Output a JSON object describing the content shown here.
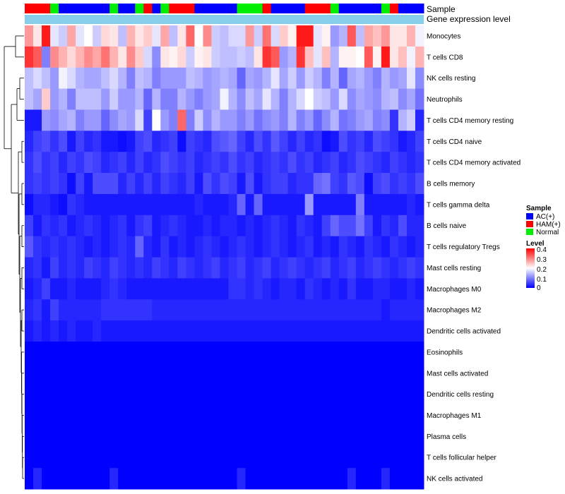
{
  "chart_data": {
    "type": "heatmap",
    "annotation_tracks": [
      "Sample",
      "Gene expression level"
    ],
    "sample_legend": {
      "title": "Sample",
      "entries": [
        {
          "label": "AC(+)",
          "color": "#0000ff"
        },
        {
          "label": "HAM(+)",
          "color": "#ff0000"
        },
        {
          "label": "Normal",
          "color": "#00ee00"
        }
      ]
    },
    "level_legend": {
      "title": "Level",
      "ticks": [
        "0.4",
        "0.3",
        "0.2",
        "0.1",
        "0"
      ],
      "min": 0,
      "max": 0.4,
      "colors": [
        "#0000ff",
        "#ffffff",
        "#ff0000"
      ]
    },
    "expression_bar_color": "#87ceeb",
    "sample_codes": [
      "H",
      "H",
      "H",
      "N",
      "A",
      "A",
      "A",
      "A",
      "A",
      "A",
      "N",
      "A",
      "A",
      "N",
      "H",
      "A",
      "N",
      "H",
      "H",
      "H",
      "A",
      "A",
      "A",
      "A",
      "A",
      "N",
      "N",
      "N",
      "H",
      "A",
      "A",
      "A",
      "A",
      "H",
      "H",
      "H",
      "N",
      "A",
      "A",
      "A",
      "A",
      "A",
      "N",
      "H",
      "A",
      "A",
      "A"
    ],
    "rows": [
      {
        "label": "Monocytes",
        "values": [
          0.28,
          0.22,
          0.38,
          0.18,
          0.16,
          0.27,
          0.18,
          0.2,
          0.16,
          0.23,
          0.22,
          0.15,
          0.26,
          0.22,
          0.24,
          0.18,
          0.27,
          0.15,
          0.22,
          0.32,
          0.2,
          0.29,
          0.16,
          0.15,
          0.17,
          0.17,
          0.28,
          0.16,
          0.31,
          0.17,
          0.24,
          0.21,
          0.38,
          0.38,
          0.18,
          0.21,
          0.12,
          0.14,
          0.33,
          0.15,
          0.27,
          0.25,
          0.28,
          0.22,
          0.22,
          0.26,
          0.19
        ]
      },
      {
        "label": "T cells CD8",
        "values": [
          0.36,
          0.33,
          0.1,
          0.29,
          0.26,
          0.23,
          0.26,
          0.29,
          0.27,
          0.31,
          0.26,
          0.22,
          0.29,
          0.24,
          0.17,
          0.11,
          0.22,
          0.21,
          0.23,
          0.16,
          0.21,
          0.22,
          0.16,
          0.15,
          0.15,
          0.16,
          0.15,
          0.22,
          0.36,
          0.33,
          0.12,
          0.14,
          0.36,
          0.25,
          0.18,
          0.25,
          0.14,
          0.21,
          0.21,
          0.2,
          0.33,
          0.21,
          0.38,
          0.22,
          0.25,
          0.19,
          0.26
        ]
      },
      {
        "label": "NK cells resting",
        "values": [
          0.15,
          0.17,
          0.15,
          0.12,
          0.19,
          0.17,
          0.14,
          0.13,
          0.13,
          0.15,
          0.17,
          0.14,
          0.1,
          0.15,
          0.14,
          0.1,
          0.12,
          0.12,
          0.12,
          0.15,
          0.14,
          0.12,
          0.13,
          0.14,
          0.13,
          0.08,
          0.13,
          0.12,
          0.14,
          0.18,
          0.13,
          0.16,
          0.12,
          0.16,
          0.14,
          0.1,
          0.14,
          0.08,
          0.13,
          0.14,
          0.12,
          0.1,
          0.14,
          0.12,
          0.13,
          0.18,
          0.11
        ]
      },
      {
        "label": "Neutrophils",
        "values": [
          0.15,
          0.13,
          0.24,
          0.12,
          0.14,
          0.1,
          0.15,
          0.15,
          0.15,
          0.12,
          0.16,
          0.12,
          0.12,
          0.14,
          0.08,
          0.14,
          0.1,
          0.1,
          0.14,
          0.12,
          0.1,
          0.12,
          0.13,
          0.19,
          0.14,
          0.11,
          0.15,
          0.13,
          0.18,
          0.14,
          0.1,
          0.14,
          0.17,
          0.2,
          0.16,
          0.15,
          0.12,
          0.17,
          0.11,
          0.13,
          0.12,
          0.11,
          0.14,
          0.15,
          0.11,
          0.13,
          0.09
        ]
      },
      {
        "label": "T cells CD4 memory resting",
        "values": [
          0.02,
          0.02,
          0.12,
          0.11,
          0.13,
          0.14,
          0.1,
          0.12,
          0.12,
          0.08,
          0.11,
          0.13,
          0.12,
          0.17,
          0.05,
          0.2,
          0.12,
          0.1,
          0.32,
          0.1,
          0.16,
          0.11,
          0.14,
          0.12,
          0.12,
          0.1,
          0.12,
          0.09,
          0.11,
          0.12,
          0.1,
          0.14,
          0.1,
          0.12,
          0.08,
          0.11,
          0.14,
          0.09,
          0.1,
          0.12,
          0.13,
          0.1,
          0.11,
          0.04,
          0.14,
          0.16,
          0.03
        ]
      },
      {
        "label": "T cells CD4 naive",
        "values": [
          0.03,
          0.05,
          0.06,
          0.04,
          0.06,
          0.02,
          0.05,
          0.03,
          0.04,
          0.02,
          0.02,
          0.01,
          0.02,
          0.05,
          0.06,
          0.03,
          0.04,
          0.05,
          0.01,
          0.05,
          0.04,
          0.03,
          0.06,
          0.07,
          0.08,
          0.05,
          0.03,
          0.06,
          0.04,
          0.07,
          0.05,
          0.03,
          0.05,
          0.03,
          0.04,
          0.01,
          0.02,
          0.06,
          0.04,
          0.05,
          0.03,
          0.06,
          0.05,
          0.04,
          0.02,
          0.03,
          0.05
        ]
      },
      {
        "label": "T cells CD4 memory activated",
        "values": [
          0.04,
          0.06,
          0.04,
          0.05,
          0.03,
          0.05,
          0.04,
          0.06,
          0.05,
          0.03,
          0.04,
          0.05,
          0.03,
          0.05,
          0.03,
          0.04,
          0.06,
          0.05,
          0.04,
          0.05,
          0.03,
          0.04,
          0.05,
          0.04,
          0.06,
          0.04,
          0.05,
          0.03,
          0.04,
          0.05,
          0.04,
          0.06,
          0.04,
          0.05,
          0.03,
          0.04,
          0.05,
          0.03,
          0.04,
          0.06,
          0.05,
          0.04,
          0.03,
          0.05,
          0.04,
          0.03,
          0.04
        ]
      },
      {
        "label": "B cells memory",
        "values": [
          0.04,
          0.05,
          0.04,
          0.05,
          0.04,
          0.01,
          0.05,
          0.02,
          0.06,
          0.06,
          0.06,
          0.03,
          0.05,
          0.03,
          0.05,
          0.03,
          0.05,
          0.04,
          0.03,
          0.05,
          0.02,
          0.06,
          0.04,
          0.06,
          0.05,
          0.02,
          0.06,
          0.02,
          0.04,
          0.05,
          0.05,
          0.03,
          0.04,
          0.04,
          0.08,
          0.09,
          0.05,
          0.04,
          0.07,
          0.06,
          0.01,
          0.05,
          0.06,
          0.04,
          0.05,
          0.04,
          0.06
        ]
      },
      {
        "label": "T cells gamma delta",
        "values": [
          0.01,
          0.03,
          0.03,
          0.02,
          0.01,
          0.04,
          0.03,
          0.02,
          0.02,
          0.02,
          0.02,
          0.02,
          0.02,
          0.02,
          0.02,
          0.02,
          0.02,
          0.02,
          0.02,
          0.02,
          0.03,
          0.02,
          0.02,
          0.02,
          0.03,
          0.08,
          0.02,
          0.08,
          0.02,
          0.02,
          0.02,
          0.02,
          0.02,
          0.12,
          0.02,
          0.02,
          0.02,
          0.02,
          0.02,
          0.1,
          0.02,
          0.02,
          0.02,
          0.02,
          0.02,
          0.03,
          0.02
        ]
      },
      {
        "label": "B cells naive",
        "values": [
          0.05,
          0.02,
          0.04,
          0.03,
          0.04,
          0.02,
          0.03,
          0.04,
          0.03,
          0.02,
          0.03,
          0.04,
          0.02,
          0.04,
          0.05,
          0.02,
          0.03,
          0.04,
          0.03,
          0.02,
          0.02,
          0.03,
          0.02,
          0.03,
          0.03,
          0.02,
          0.03,
          0.02,
          0.03,
          0.04,
          0.03,
          0.02,
          0.04,
          0.03,
          0.02,
          0.05,
          0.08,
          0.06,
          0.06,
          0.09,
          0.05,
          0.02,
          0.04,
          0.03,
          0.06,
          0.03,
          0.03
        ]
      },
      {
        "label": "T cells regulatory  Tregs",
        "values": [
          0.07,
          0.04,
          0.03,
          0.04,
          0.03,
          0.04,
          0.03,
          0.02,
          0.03,
          0.02,
          0.03,
          0.04,
          0.03,
          0.08,
          0.03,
          0.02,
          0.04,
          0.02,
          0.03,
          0.02,
          0.03,
          0.04,
          0.03,
          0.02,
          0.03,
          0.04,
          0.03,
          0.02,
          0.03,
          0.04,
          0.03,
          0.02,
          0.03,
          0.04,
          0.02,
          0.03,
          0.02,
          0.04,
          0.03,
          0.02,
          0.04,
          0.03,
          0.02,
          0.04,
          0.03,
          0.02,
          0.03
        ]
      },
      {
        "label": "Mast cells resting",
        "values": [
          0.03,
          0.04,
          0.02,
          0.05,
          0.03,
          0.04,
          0.03,
          0.05,
          0.04,
          0.03,
          0.05,
          0.04,
          0.03,
          0.04,
          0.03,
          0.05,
          0.04,
          0.03,
          0.05,
          0.04,
          0.03,
          0.04,
          0.05,
          0.03,
          0.04,
          0.05,
          0.03,
          0.04,
          0.05,
          0.03,
          0.04,
          0.05,
          0.04,
          0.03,
          0.04,
          0.05,
          0.03,
          0.04,
          0.05,
          0.03,
          0.04,
          0.05,
          0.04,
          0.03,
          0.04,
          0.05,
          0.04
        ]
      },
      {
        "label": "Macrophages M0",
        "values": [
          0.02,
          0.03,
          0.05,
          0.02,
          0.02,
          0.03,
          0.02,
          0.02,
          0.02,
          0.03,
          0.04,
          0.03,
          0.02,
          0.02,
          0.02,
          0.02,
          0.02,
          0.02,
          0.02,
          0.02,
          0.02,
          0.02,
          0.02,
          0.02,
          0.04,
          0.04,
          0.03,
          0.04,
          0.03,
          0.02,
          0.03,
          0.03,
          0.02,
          0.04,
          0.03,
          0.02,
          0.03,
          0.02,
          0.04,
          0.02,
          0.02,
          0.03,
          0.03,
          0.02,
          0.02,
          0.03,
          0.02
        ]
      },
      {
        "label": "Macrophages M2",
        "values": [
          0.03,
          0.04,
          0.02,
          0.05,
          0.03,
          0.03,
          0.03,
          0.03,
          0.03,
          0.04,
          0.04,
          0.04,
          0.04,
          0.04,
          0.04,
          0.03,
          0.03,
          0.03,
          0.03,
          0.03,
          0.03,
          0.03,
          0.03,
          0.03,
          0.03,
          0.03,
          0.03,
          0.03,
          0.03,
          0.03,
          0.03,
          0.03,
          0.03,
          0.03,
          0.03,
          0.03,
          0.03,
          0.03,
          0.03,
          0.03,
          0.03,
          0.03,
          0.02,
          0.03,
          0.03,
          0.03,
          0.03
        ]
      },
      {
        "label": "Dendritic cells activated",
        "values": [
          0.02,
          0.03,
          0.02,
          0.03,
          0.02,
          0.03,
          0.02,
          0.02,
          0.03,
          0.02,
          0.02,
          0.02,
          0.02,
          0.02,
          0.02,
          0.02,
          0.02,
          0.02,
          0.02,
          0.02,
          0.02,
          0.02,
          0.02,
          0.02,
          0.02,
          0.02,
          0.02,
          0.02,
          0.02,
          0.02,
          0.02,
          0.02,
          0.02,
          0.02,
          0.02,
          0.02,
          0.02,
          0.02,
          0.02,
          0.02,
          0.02,
          0.02,
          0.02,
          0.02,
          0.02,
          0.02,
          0.02
        ]
      },
      {
        "label": "Eosinophils",
        "values": [
          0,
          0,
          0,
          0,
          0,
          0,
          0,
          0,
          0,
          0,
          0,
          0,
          0,
          0,
          0,
          0,
          0,
          0,
          0,
          0,
          0,
          0,
          0,
          0,
          0,
          0,
          0,
          0,
          0,
          0,
          0,
          0,
          0,
          0,
          0,
          0,
          0,
          0,
          0,
          0,
          0,
          0,
          0,
          0,
          0,
          0,
          0
        ]
      },
      {
        "label": "Mast cells activated",
        "values": [
          0,
          0,
          0,
          0,
          0,
          0,
          0,
          0,
          0,
          0,
          0,
          0,
          0,
          0,
          0,
          0,
          0,
          0,
          0,
          0,
          0,
          0,
          0,
          0,
          0,
          0,
          0,
          0,
          0,
          0,
          0,
          0,
          0,
          0,
          0,
          0,
          0,
          0,
          0,
          0,
          0,
          0,
          0,
          0,
          0,
          0,
          0
        ]
      },
      {
        "label": "Dendritic cells resting",
        "values": [
          0,
          0,
          0,
          0,
          0,
          0,
          0,
          0,
          0,
          0,
          0,
          0,
          0,
          0,
          0,
          0,
          0,
          0,
          0,
          0,
          0,
          0,
          0,
          0,
          0,
          0,
          0,
          0,
          0,
          0,
          0,
          0,
          0,
          0,
          0,
          0,
          0,
          0,
          0,
          0,
          0,
          0,
          0,
          0,
          0,
          0,
          0
        ]
      },
      {
        "label": "Macrophages M1",
        "values": [
          0,
          0,
          0,
          0,
          0,
          0,
          0,
          0,
          0,
          0,
          0,
          0,
          0,
          0,
          0,
          0,
          0,
          0,
          0,
          0,
          0,
          0,
          0,
          0,
          0,
          0,
          0,
          0,
          0,
          0,
          0,
          0,
          0,
          0,
          0,
          0,
          0,
          0,
          0,
          0,
          0,
          0,
          0,
          0,
          0,
          0,
          0
        ]
      },
      {
        "label": "Plasma cells",
        "values": [
          0,
          0,
          0,
          0,
          0,
          0,
          0,
          0,
          0,
          0,
          0,
          0,
          0,
          0,
          0,
          0,
          0,
          0,
          0,
          0,
          0,
          0,
          0,
          0,
          0,
          0,
          0,
          0,
          0,
          0,
          0,
          0,
          0,
          0,
          0,
          0,
          0,
          0,
          0,
          0,
          0,
          0,
          0,
          0,
          0,
          0,
          0
        ]
      },
      {
        "label": "T cells follicular helper",
        "values": [
          0,
          0,
          0,
          0,
          0,
          0,
          0,
          0,
          0,
          0,
          0,
          0,
          0,
          0,
          0,
          0,
          0,
          0,
          0,
          0,
          0,
          0,
          0,
          0,
          0,
          0,
          0,
          0,
          0,
          0,
          0,
          0,
          0,
          0,
          0,
          0,
          0,
          0,
          0,
          0,
          0,
          0,
          0,
          0,
          0,
          0,
          0
        ]
      },
      {
        "label": "NK cells activated",
        "values": [
          0,
          0.03,
          0,
          0,
          0,
          0,
          0,
          0,
          0,
          0,
          0.03,
          0,
          0,
          0,
          0,
          0,
          0,
          0,
          0,
          0,
          0,
          0,
          0,
          0,
          0,
          0.03,
          0,
          0,
          0,
          0,
          0,
          0,
          0,
          0,
          0,
          0,
          0,
          0,
          0.03,
          0,
          0,
          0,
          0.03,
          0,
          0,
          0,
          0
        ]
      }
    ]
  }
}
